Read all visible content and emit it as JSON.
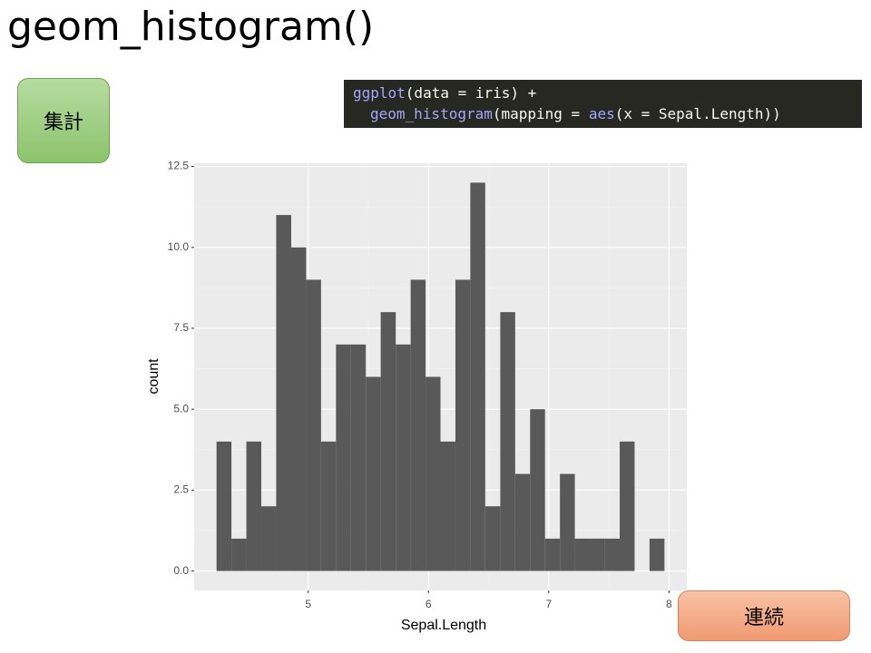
{
  "slide": {
    "title": "geom_histogram()",
    "button_left": "集計",
    "button_right": "連続",
    "code": [
      [
        "ggplot",
        "(data = iris) +"
      ],
      [
        "geom_histogram",
        "(mapping = ",
        "aes",
        "(x = Sepal.Length))"
      ]
    ]
  },
  "chart_data": {
    "type": "histogram",
    "x_label": "Sepal.Length",
    "y_label": "count",
    "color": "#595959",
    "bins": [
      4.238,
      4.362,
      4.486,
      4.61,
      4.734,
      4.859,
      4.983,
      5.107,
      5.231,
      5.355,
      5.479,
      5.603,
      5.728,
      5.852,
      5.976,
      6.1,
      6.224,
      6.348,
      6.472,
      6.597,
      6.721,
      6.845,
      6.969,
      7.093,
      7.217,
      7.341,
      7.466,
      7.59,
      7.714,
      7.838,
      7.962
    ],
    "values": [
      4,
      1,
      4,
      2,
      11,
      10,
      9,
      4,
      7,
      7,
      6,
      8,
      7,
      9,
      6,
      4,
      9,
      12,
      2,
      8,
      3,
      5,
      1,
      3,
      1,
      1,
      1,
      4,
      0,
      1
    ],
    "xlim": [
      4.052,
      8.148
    ],
    "xticks": [
      5,
      6,
      7,
      8
    ],
    "ylim": [
      -0.6,
      12.6
    ],
    "yticks": [
      {
        "value": 0,
        "label": "0.0"
      },
      2.5,
      {
        "value": 5,
        "label": "5.0"
      },
      7.5,
      {
        "value": 10,
        "label": "10.0"
      },
      12.5
    ],
    "grid": true
  }
}
